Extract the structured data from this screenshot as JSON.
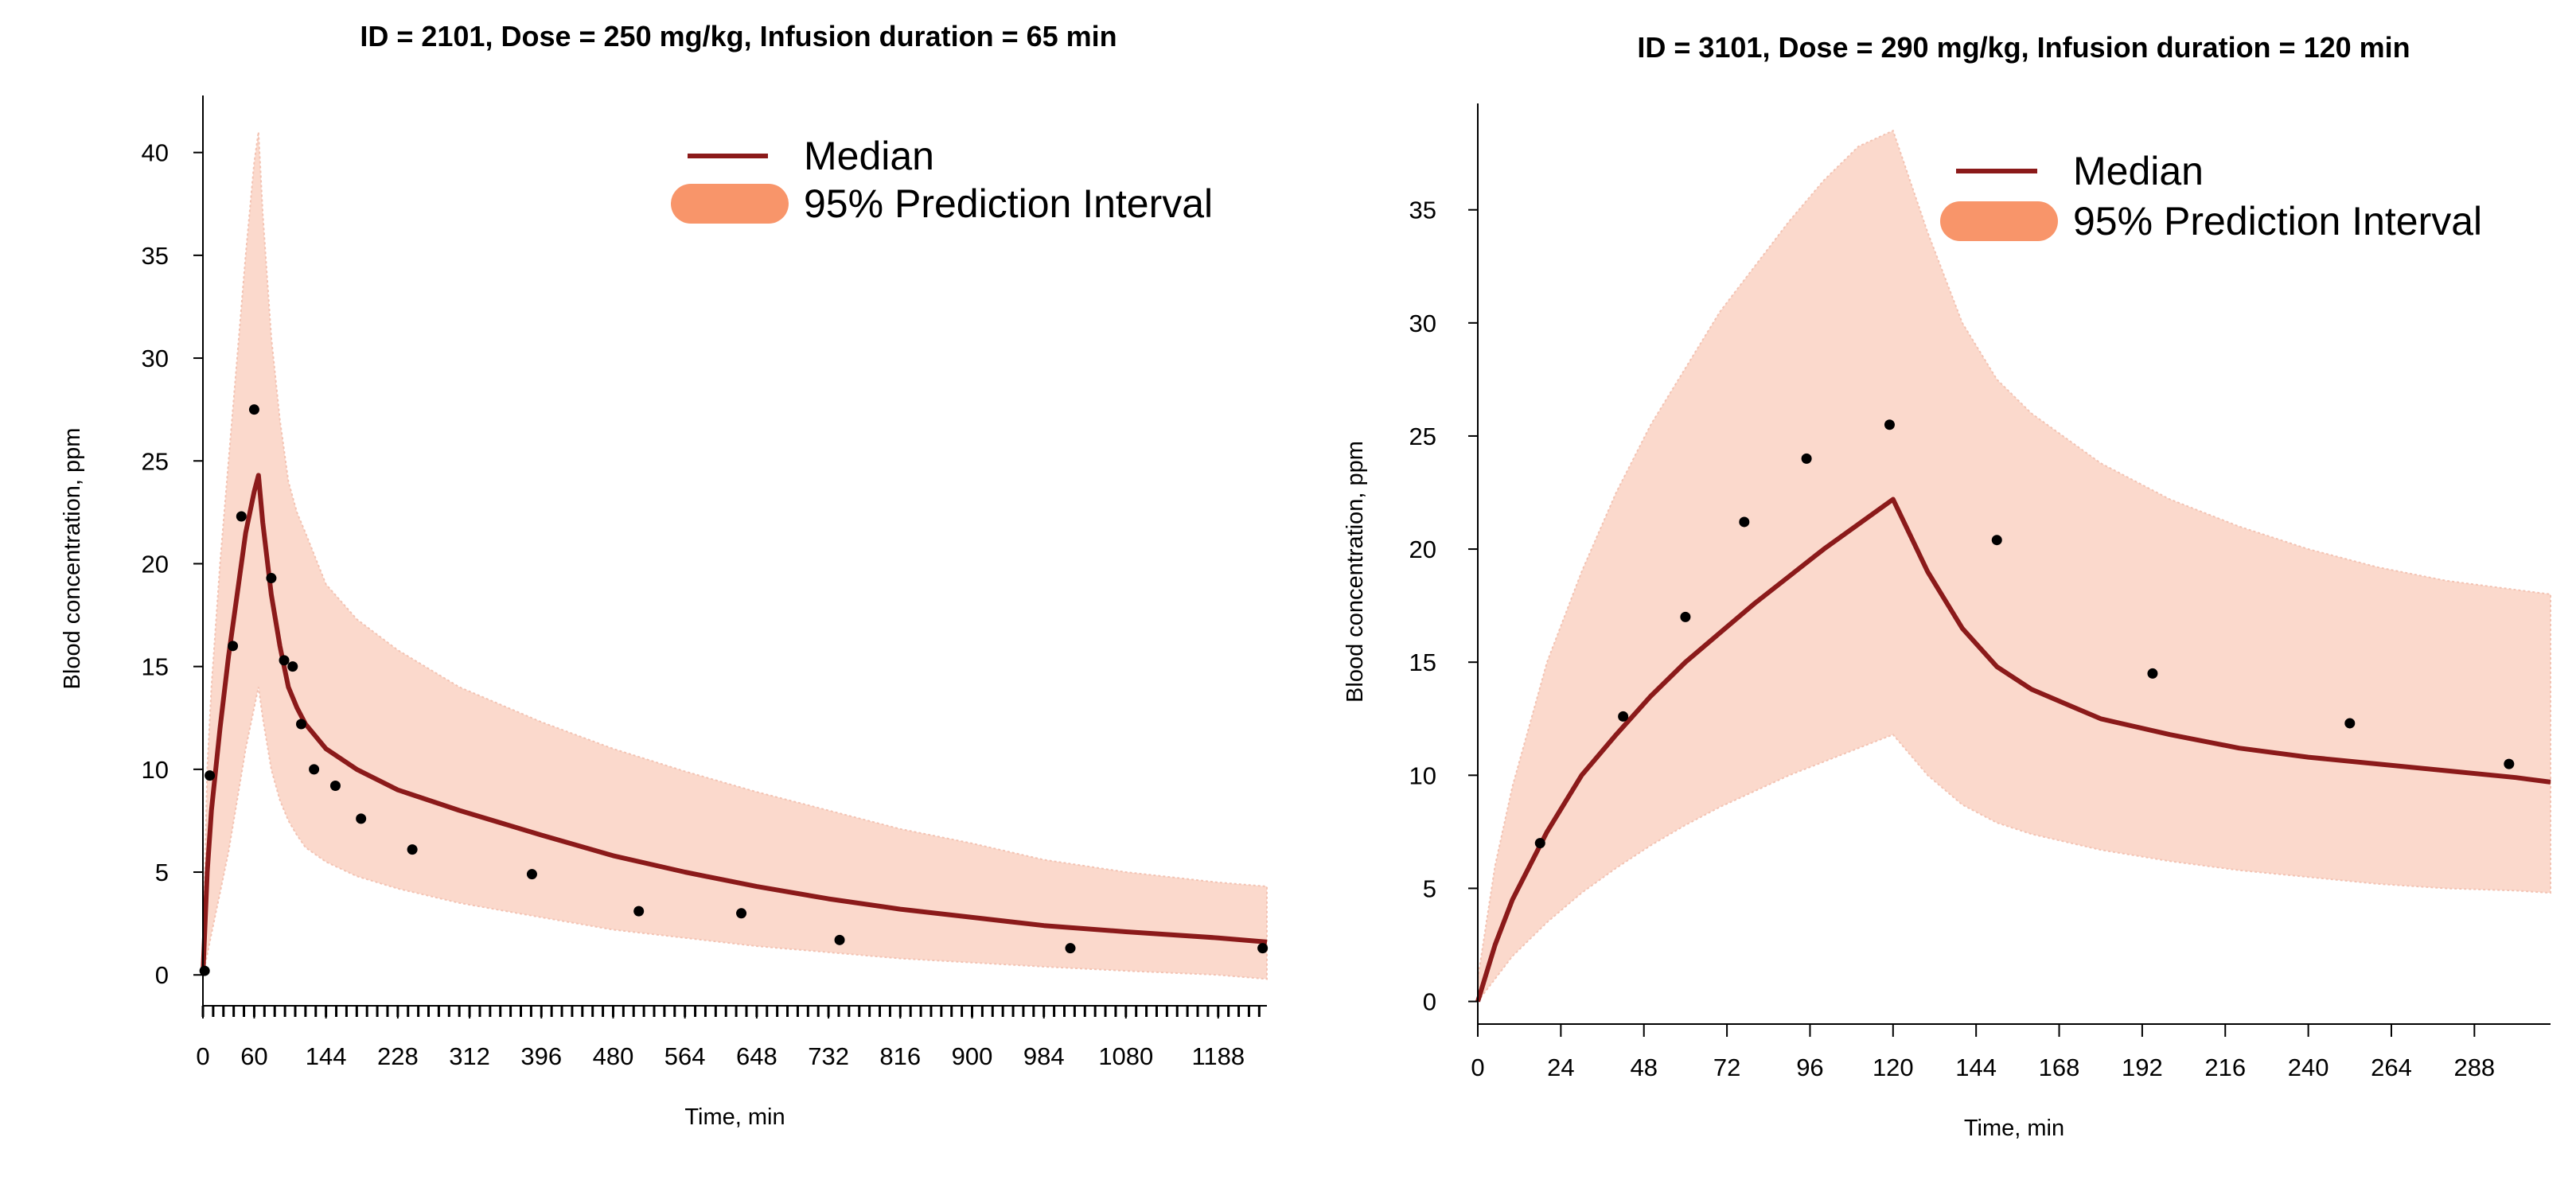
{
  "colors": {
    "median": "#8b1a1a",
    "band": "#fbd9cc",
    "band_edge": "#f3c3b3",
    "legend_band": "#f8956a",
    "points": "#000000"
  },
  "chart_data": [
    {
      "type": "line",
      "title": "ID = 2101, Dose = 250 mg/kg, Infusion duration = 65 min",
      "xlabel": "Time, min",
      "ylabel": "Blood concentration, ppm",
      "xlim": [
        0,
        1245
      ],
      "ylim": [
        -1.5,
        42
      ],
      "xticks": [
        "0",
        "60",
        "144",
        "228",
        "312",
        "396",
        "480",
        "564",
        "648",
        "732",
        "816",
        "900",
        "984",
        "1080",
        "1188"
      ],
      "xtick_values": [
        0,
        60,
        144,
        228,
        312,
        396,
        480,
        564,
        648,
        732,
        816,
        900,
        984,
        1080,
        1188
      ],
      "minor_tick_step": 12,
      "yticks": [
        "0",
        "5",
        "10",
        "15",
        "20",
        "25",
        "30",
        "35",
        "40"
      ],
      "ytick_values": [
        0,
        5,
        10,
        15,
        20,
        25,
        30,
        35,
        40
      ],
      "legend": {
        "position": "top-right",
        "entries": [
          "Median",
          "95% Prediction Interval"
        ]
      },
      "series": [
        {
          "name": "Median",
          "x": [
            0,
            5,
            10,
            20,
            30,
            40,
            50,
            60,
            65,
            70,
            80,
            90,
            100,
            110,
            120,
            144,
            180,
            228,
            300,
            396,
            480,
            564,
            648,
            732,
            816,
            900,
            984,
            1080,
            1188,
            1245
          ],
          "y": [
            0,
            5,
            8,
            12,
            15.5,
            18.5,
            21.5,
            23.5,
            24.3,
            22,
            18.5,
            16,
            14,
            13,
            12.2,
            11,
            10,
            9,
            8,
            6.8,
            5.8,
            5,
            4.3,
            3.7,
            3.2,
            2.8,
            2.4,
            2.1,
            1.8,
            1.6
          ]
        },
        {
          "name": "95% Prediction Interval",
          "x": [
            0,
            5,
            10,
            20,
            30,
            40,
            50,
            60,
            65,
            70,
            80,
            90,
            100,
            110,
            120,
            144,
            180,
            228,
            300,
            396,
            480,
            564,
            648,
            732,
            816,
            900,
            984,
            1080,
            1188,
            1245
          ],
          "lower": [
            0,
            1,
            2,
            4,
            6,
            8.5,
            11,
            13,
            14,
            12.5,
            10,
            8.5,
            7.5,
            6.8,
            6.2,
            5.5,
            4.8,
            4.2,
            3.5,
            2.8,
            2.2,
            1.8,
            1.4,
            1.1,
            0.8,
            0.6,
            0.4,
            0.2,
            0,
            -0.2
          ],
          "upper": [
            0.5,
            10,
            14,
            20,
            25,
            30,
            35,
            39.5,
            41,
            37,
            31,
            27,
            24,
            22.5,
            21.5,
            19,
            17.3,
            15.8,
            14,
            12.3,
            11,
            9.9,
            8.9,
            8,
            7.1,
            6.4,
            5.6,
            5,
            4.5,
            4.3
          ]
        },
        {
          "name": "Observed",
          "x": [
            2,
            8,
            35,
            45,
            60,
            80,
            95,
            105,
            115,
            130,
            155,
            185,
            245,
            385,
            510,
            630,
            745,
            1015,
            1240
          ],
          "y": [
            0.2,
            9.7,
            16,
            22.3,
            27.5,
            19.3,
            15.3,
            15,
            12.2,
            10,
            9.2,
            7.6,
            6.1,
            4.9,
            3.1,
            3,
            1.7,
            1.3,
            1.3
          ]
        }
      ]
    },
    {
      "type": "line",
      "title": "ID = 3101, Dose = 290 mg/kg, Infusion duration = 120 min",
      "xlabel": "Time, min",
      "ylabel": "Blood concentration, ppm",
      "xlim": [
        0,
        310
      ],
      "ylim": [
        -1,
        39
      ],
      "xticks": [
        "0",
        "24",
        "48",
        "72",
        "96",
        "120",
        "144",
        "168",
        "192",
        "216",
        "240",
        "264",
        "288"
      ],
      "xtick_values": [
        0,
        24,
        48,
        72,
        96,
        120,
        144,
        168,
        192,
        216,
        240,
        264,
        288
      ],
      "yticks": [
        "0",
        "5",
        "10",
        "15",
        "20",
        "25",
        "30",
        "35"
      ],
      "ytick_values": [
        0,
        5,
        10,
        15,
        20,
        25,
        30,
        35
      ],
      "legend": {
        "position": "top-right",
        "entries": [
          "Median",
          "95% Prediction Interval"
        ]
      },
      "series": [
        {
          "name": "Median",
          "x": [
            0,
            5,
            10,
            20,
            30,
            40,
            50,
            60,
            70,
            80,
            90,
            100,
            110,
            120,
            130,
            140,
            150,
            160,
            180,
            200,
            220,
            240,
            260,
            280,
            300,
            310
          ],
          "y": [
            0,
            2.5,
            4.5,
            7.5,
            10,
            11.8,
            13.5,
            15,
            16.3,
            17.6,
            18.8,
            20,
            21.1,
            22.2,
            19,
            16.5,
            14.8,
            13.8,
            12.5,
            11.8,
            11.2,
            10.8,
            10.5,
            10.2,
            9.9,
            9.7
          ]
        },
        {
          "name": "95% Prediction Interval",
          "x": [
            0,
            5,
            10,
            20,
            30,
            40,
            50,
            60,
            70,
            80,
            90,
            100,
            110,
            120,
            130,
            140,
            150,
            160,
            180,
            200,
            220,
            240,
            260,
            280,
            300,
            310
          ],
          "lower": [
            0,
            1,
            2,
            3.5,
            4.8,
            5.9,
            6.9,
            7.8,
            8.6,
            9.3,
            10,
            10.6,
            11.2,
            11.8,
            10,
            8.7,
            7.9,
            7.4,
            6.7,
            6.2,
            5.8,
            5.5,
            5.2,
            5,
            4.9,
            4.8
          ],
          "upper": [
            1,
            6,
            9.5,
            15,
            19,
            22.5,
            25.5,
            28,
            30.5,
            32.5,
            34.5,
            36.3,
            37.8,
            38.5,
            34,
            30,
            27.5,
            26,
            23.8,
            22.2,
            21,
            20,
            19.2,
            18.6,
            18.2,
            18
          ]
        },
        {
          "name": "Observed",
          "x": [
            18,
            42,
            60,
            77,
            95,
            119,
            150,
            195,
            252,
            298
          ],
          "y": [
            7,
            12.6,
            17,
            21.2,
            24,
            25.5,
            20.4,
            14.5,
            12.3,
            10.5
          ]
        }
      ]
    }
  ]
}
